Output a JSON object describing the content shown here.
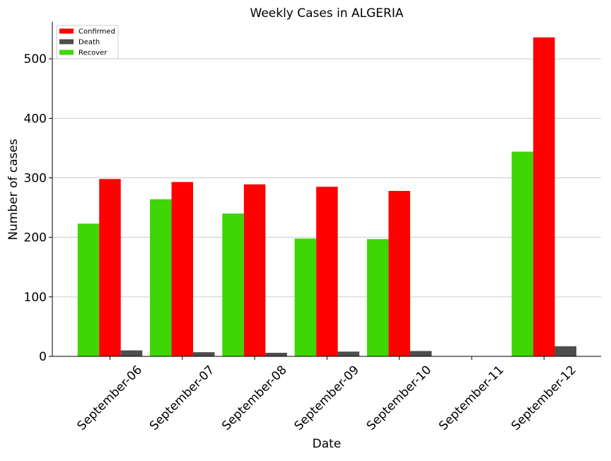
{
  "chart_data": {
    "type": "bar",
    "title": "Weekly Cases in ALGERIA",
    "xlabel": "Date",
    "ylabel": "Number of cases",
    "categories": [
      "September-06",
      "September-07",
      "September-08",
      "September-09",
      "September-10",
      "September-11",
      "September-12"
    ],
    "series": [
      {
        "name": "Recover",
        "color": "#3ed605",
        "values": [
          223,
          264,
          240,
          198,
          197,
          0,
          344
        ]
      },
      {
        "name": "Confirmed",
        "color": "#ff0000",
        "values": [
          298,
          293,
          289,
          285,
          278,
          0,
          536
        ]
      },
      {
        "name": "Death",
        "color": "#4d4d4d",
        "values": [
          10,
          7,
          6,
          8,
          9,
          0,
          17
        ]
      }
    ],
    "legend_order": [
      "Confirmed",
      "Death",
      "Recover"
    ],
    "ylim": [
      0,
      562
    ],
    "yticks": [
      0,
      100,
      200,
      300,
      400,
      500
    ],
    "grid": "horizontal",
    "legend_position": "top-left"
  }
}
